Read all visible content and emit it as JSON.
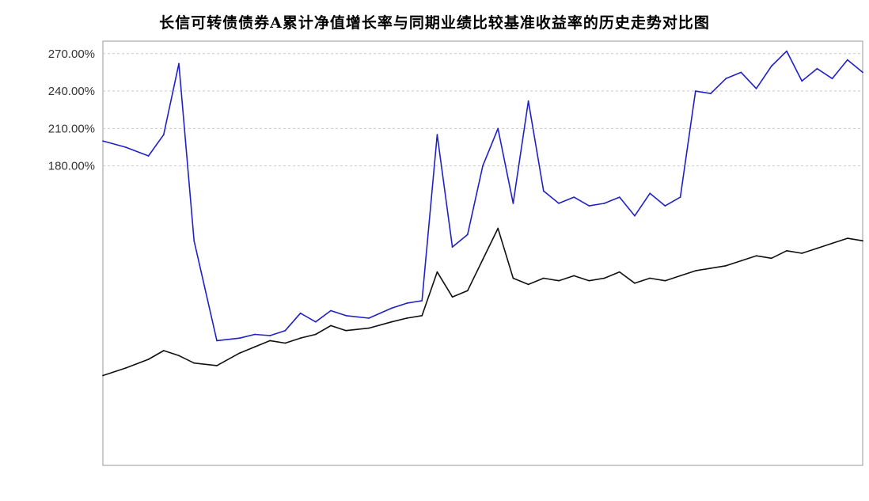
{
  "chart_data": {
    "type": "line",
    "title": "长信可转债债券A累计净值增长率与同期业绩比较基准收益率的历史走势对比图",
    "xlabel": "",
    "ylabel": "",
    "yticks": [
      {
        "value": 270,
        "label": "270.00%"
      },
      {
        "value": 240,
        "label": "240.00%"
      },
      {
        "value": 210,
        "label": "210.00%"
      },
      {
        "value": 180,
        "label": "180.00%"
      }
    ],
    "ylim": [
      -60,
      280
    ],
    "grid": true,
    "series": [
      {
        "color": "#2020c8",
        "x": [
          0,
          3,
          6,
          8,
          10,
          12,
          15,
          18,
          20,
          22,
          24,
          26,
          28,
          30,
          32,
          35,
          38,
          40,
          42,
          44,
          46,
          48,
          50,
          52,
          54,
          56,
          58,
          60,
          62,
          64,
          66,
          68,
          70,
          72,
          74,
          76,
          78,
          80,
          82,
          84,
          86,
          88,
          90,
          92,
          94,
          96,
          98,
          100
        ],
        "values": [
          200,
          195,
          188,
          205,
          262,
          120,
          40,
          42,
          45,
          44,
          48,
          62,
          55,
          64,
          60,
          58,
          66,
          70,
          72,
          205,
          115,
          125,
          180,
          210,
          150,
          232,
          160,
          150,
          155,
          148,
          150,
          155,
          140,
          158,
          148,
          155,
          240,
          238,
          250,
          255,
          242,
          260,
          272,
          248,
          258,
          250,
          265,
          255
        ]
      },
      {
        "color": "#101010",
        "x": [
          0,
          3,
          6,
          8,
          10,
          12,
          15,
          18,
          20,
          22,
          24,
          26,
          28,
          30,
          32,
          35,
          38,
          40,
          42,
          44,
          46,
          48,
          50,
          52,
          54,
          56,
          58,
          60,
          62,
          64,
          66,
          68,
          70,
          72,
          74,
          76,
          78,
          80,
          82,
          84,
          86,
          88,
          90,
          92,
          94,
          96,
          98,
          100
        ],
        "values": [
          12,
          18,
          25,
          32,
          28,
          22,
          20,
          30,
          35,
          40,
          38,
          42,
          45,
          52,
          48,
          50,
          55,
          58,
          60,
          95,
          75,
          80,
          105,
          130,
          90,
          85,
          90,
          88,
          92,
          88,
          90,
          95,
          86,
          90,
          88,
          92,
          96,
          98,
          100,
          104,
          108,
          106,
          112,
          110,
          114,
          118,
          122,
          120
        ]
      }
    ]
  }
}
